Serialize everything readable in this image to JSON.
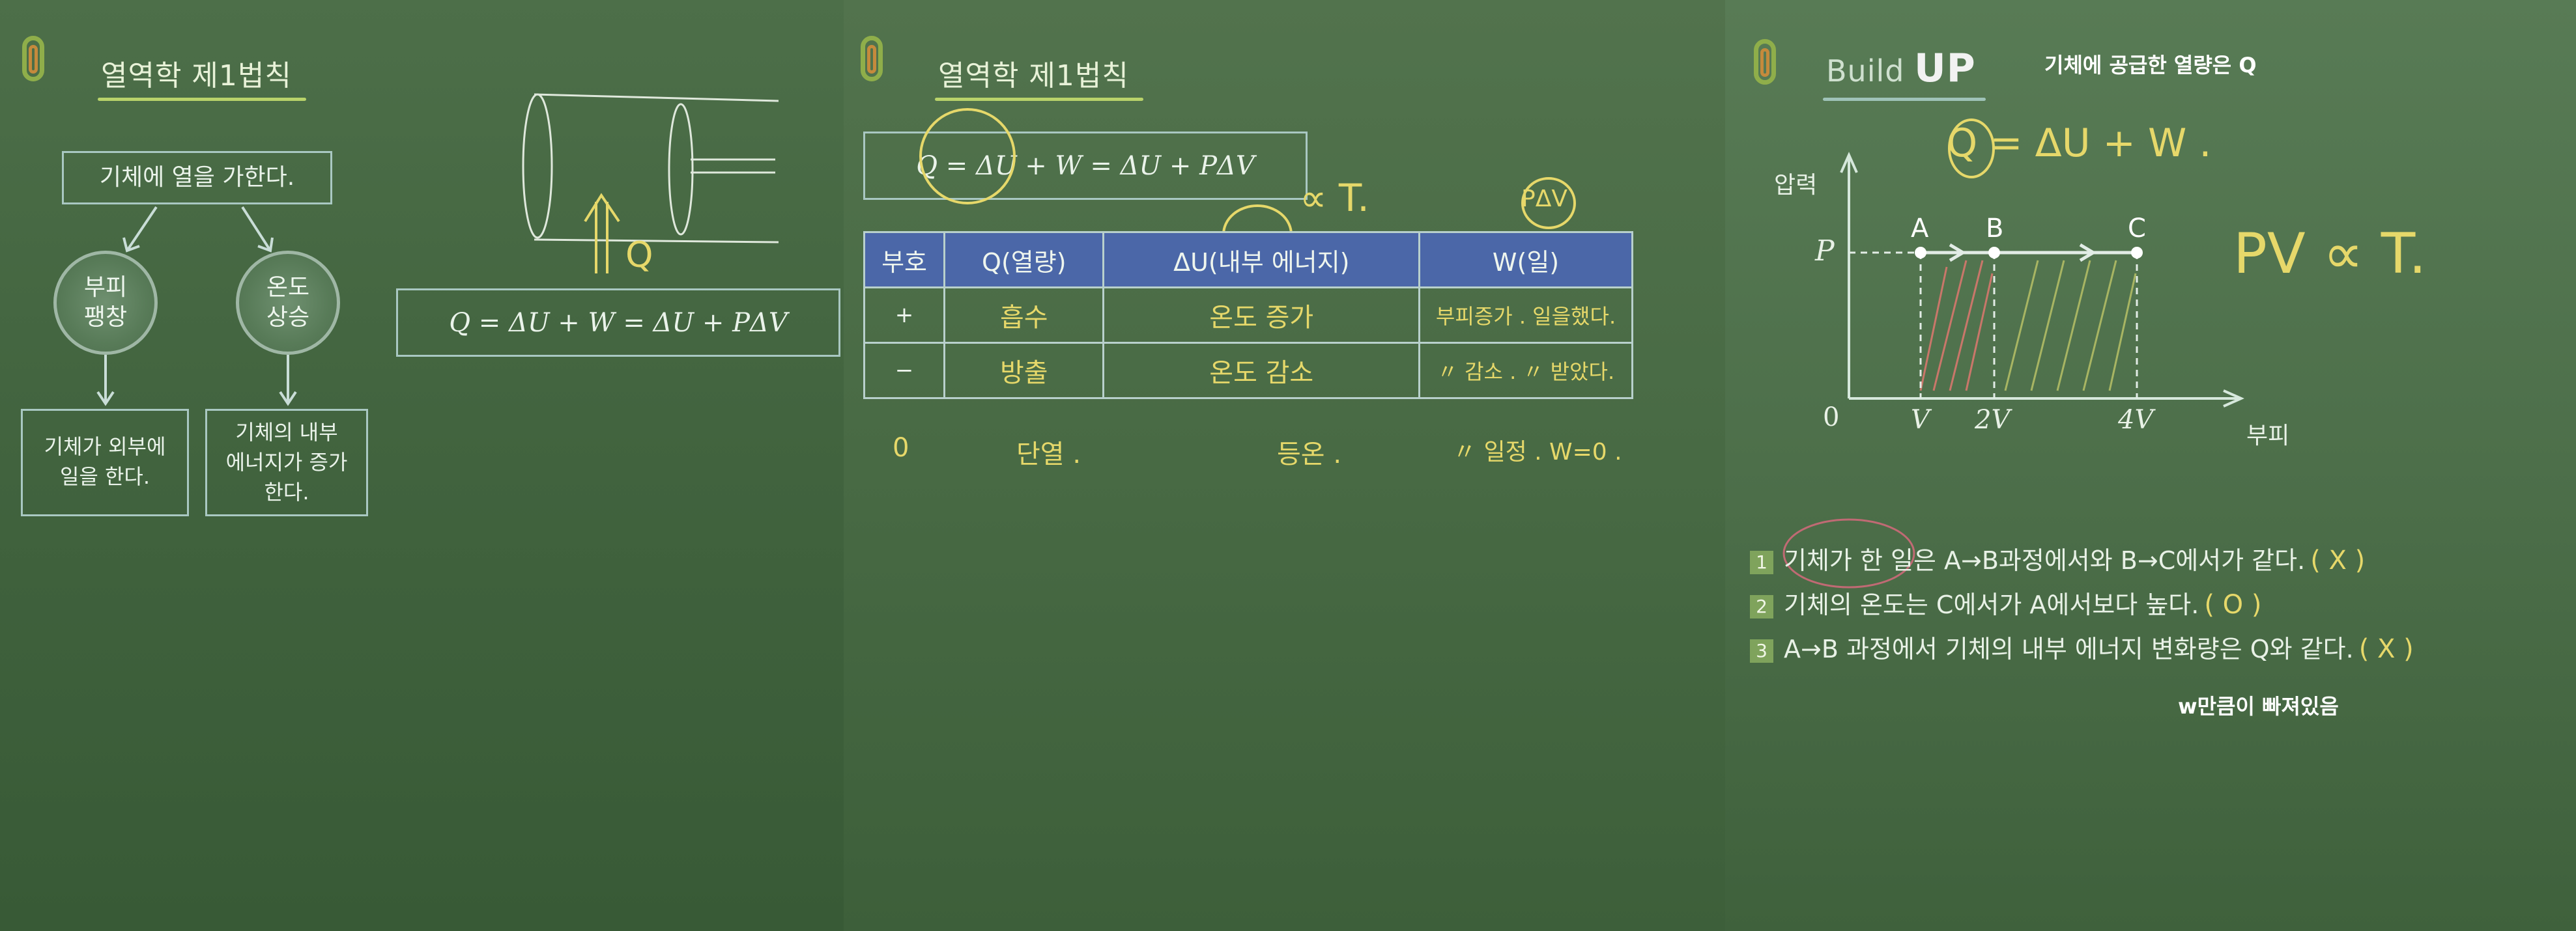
{
  "panel1": {
    "title": "열역학 제1법칙",
    "top_box": "기체에 열을 가한다.",
    "left_circle": [
      "부피",
      "팽창"
    ],
    "right_circle": [
      "온도",
      "상승"
    ],
    "left_result": [
      "기체가 외부에",
      "일을 한다."
    ],
    "right_result": [
      "기체의 내부",
      "에너지가 증가",
      "한다."
    ],
    "formula": "Q = ΔU + W = ΔU + PΔV",
    "hand_q": "Q"
  },
  "panel2": {
    "title": "열역학 제1법칙",
    "formula": "Q = ΔU + W = ΔU + PΔV",
    "hand_top": "∝ T.",
    "hand_pdv": "PΔV",
    "table": {
      "headers": [
        "부호",
        "Q(열량)",
        "ΔU(내부 에너지)",
        "W(일)"
      ],
      "rows": [
        [
          "+",
          "흡수",
          "온도 증가",
          "부피증가 . 일을했다."
        ],
        [
          "−",
          "방출",
          "온도 감소",
          "〃 감소 . 〃 받았다."
        ]
      ],
      "zero_row": [
        "0",
        "단열 .",
        "등온 .",
        "〃 일정 . W=0 ."
      ]
    }
  },
  "panel3": {
    "logo_text_build": "Build",
    "logo_text_up": "UP",
    "caption_top": "기체에 공급한 열량은 Q",
    "hand_eq": "Q = ΔU + W .",
    "hand_pv": "PV ∝ T.",
    "graph": {
      "ylabel": "압력",
      "xlabel": "부피",
      "p_label": "P",
      "origin": "0",
      "points": [
        "A",
        "B",
        "C"
      ],
      "x_ticks": [
        "V",
        "2V",
        "4V"
      ]
    },
    "statements": [
      {
        "num": "1",
        "text": "기체가 한 일은  A→B과정에서와  B→C에서가 같다.",
        "mark": "( X )"
      },
      {
        "num": "2",
        "text": "기체의 온도는 C에서가 A에서보다 높다.",
        "mark": "( O )"
      },
      {
        "num": "3",
        "text": "A→B 과정에서 기체의 내부 에너지 변화량은 Q와 같다.",
        "mark": "( X )"
      }
    ],
    "caption_bottom": "w만큼이 빠져있음"
  },
  "colors": {
    "board": "#42643f",
    "chalk_yellow": "#e6d86a",
    "table_header": "#4b67a8"
  }
}
